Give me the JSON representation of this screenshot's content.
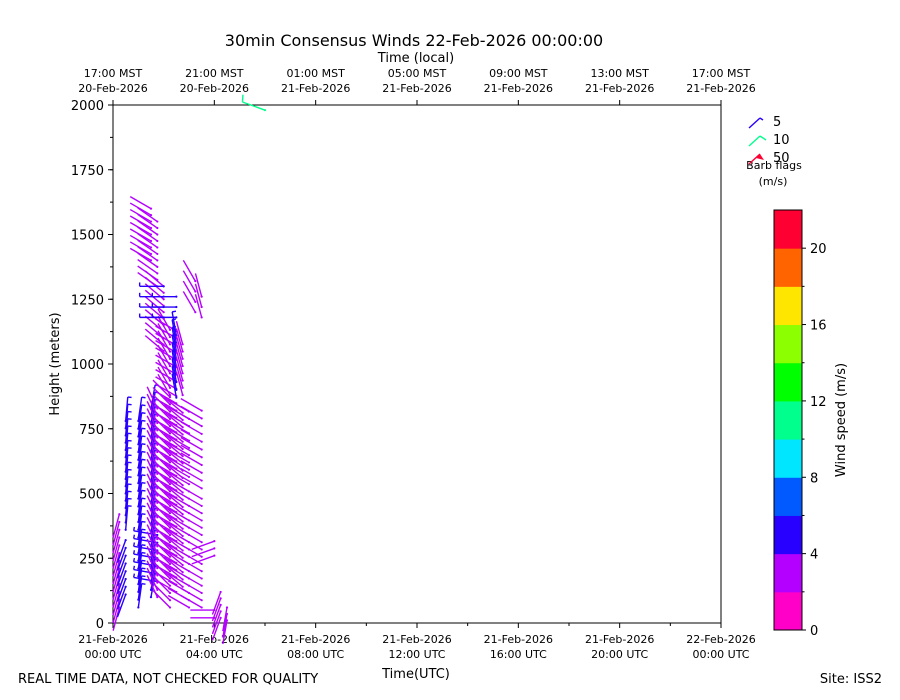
{
  "chart_data": {
    "type": "scatter",
    "title": "30min Consensus Winds 22-Feb-2026 00:00:00",
    "top_axis_title": "Time (local)",
    "xlabel": "Time(UTC)",
    "ylabel": "Height (meters)",
    "xlim_hours": [
      0,
      24
    ],
    "ylim": [
      0,
      2000
    ],
    "y_ticks": [
      0,
      250,
      500,
      750,
      1000,
      1250,
      1500,
      1750,
      2000
    ],
    "x_ticks": [
      {
        "hour": 0,
        "line1": "21-Feb-2026",
        "line2": "00:00 UTC"
      },
      {
        "hour": 4,
        "line1": "21-Feb-2026",
        "line2": "04:00 UTC"
      },
      {
        "hour": 8,
        "line1": "21-Feb-2026",
        "line2": "08:00 UTC"
      },
      {
        "hour": 12,
        "line1": "21-Feb-2026",
        "line2": "12:00 UTC"
      },
      {
        "hour": 16,
        "line1": "21-Feb-2026",
        "line2": "16:00 UTC"
      },
      {
        "hour": 20,
        "line1": "21-Feb-2026",
        "line2": "20:00 UTC"
      },
      {
        "hour": 24,
        "line1": "22-Feb-2026",
        "line2": "00:00 UTC"
      }
    ],
    "top_ticks": [
      {
        "hour": 0,
        "line1": "17:00 MST",
        "line2": "20-Feb-2026"
      },
      {
        "hour": 4,
        "line1": "21:00 MST",
        "line2": "20-Feb-2026"
      },
      {
        "hour": 8,
        "line1": "01:00 MST",
        "line2": "21-Feb-2026"
      },
      {
        "hour": 12,
        "line1": "05:00 MST",
        "line2": "21-Feb-2026"
      },
      {
        "hour": 16,
        "line1": "09:00 MST",
        "line2": "21-Feb-2026"
      },
      {
        "hour": 20,
        "line1": "13:00 MST",
        "line2": "21-Feb-2026"
      },
      {
        "hour": 24,
        "line1": "17:00 MST",
        "line2": "21-Feb-2026"
      }
    ],
    "legend": {
      "entries": [
        {
          "speed": 5,
          "label": "5"
        },
        {
          "speed": 10,
          "label": "10"
        },
        {
          "speed": 50,
          "label": "50"
        }
      ],
      "caption_line1": "Barb flags",
      "caption_line2": "(m/s)"
    },
    "colorbar": {
      "label": "Wind speed (m/s)",
      "min": 0,
      "max": 22,
      "ticks": [
        0,
        4,
        8,
        12,
        16,
        20
      ],
      "colors": [
        "#ff00c8",
        "#b400ff",
        "#2800ff",
        "#005aff",
        "#00e6ff",
        "#00ff8c",
        "#00ff00",
        "#8cff00",
        "#ffe600",
        "#ff6400",
        "#ff0032"
      ]
    },
    "barb_groups": [
      {
        "hour": 0.25,
        "h_start": 60,
        "h_end": 420,
        "step": 30,
        "speed": 3.5,
        "dir": 195
      },
      {
        "hour": 0.5,
        "h_start": 110,
        "h_end": 340,
        "step": 30,
        "speed": 4.0,
        "dir": 200
      },
      {
        "hour": 0.5,
        "h_start": 360,
        "h_end": 790,
        "step": 28,
        "speed": 5.2,
        "dir": 5
      },
      {
        "hour": 1.0,
        "h_start": 60,
        "h_end": 790,
        "step": 30,
        "speed": 5.0,
        "dir": 8
      },
      {
        "hour": 1.5,
        "h_start": 100,
        "h_end": 850,
        "step": 28,
        "speed": 5.5,
        "dir": 10
      },
      {
        "hour": 1.75,
        "h_start": 160,
        "h_end": 360,
        "step": 30,
        "speed": 5.0,
        "dir": 280
      },
      {
        "hour": 1.75,
        "h_start": 100,
        "h_end": 830,
        "step": 28,
        "speed": 3.6,
        "dir": 335
      },
      {
        "hour": 2.25,
        "h_start": 60,
        "h_end": 880,
        "step": 28,
        "speed": 3.4,
        "dir": 315
      },
      {
        "hour": 2.5,
        "h_start": 120,
        "h_end": 1150,
        "step": 28,
        "speed": 3.8,
        "dir": 300
      },
      {
        "hour": 2.75,
        "h_start": 140,
        "h_end": 820,
        "step": 28,
        "speed": 3.2,
        "dir": 310
      },
      {
        "hour": 3.0,
        "h_start": 60,
        "h_end": 830,
        "step": 28,
        "speed": 3.3,
        "dir": 300
      },
      {
        "hour": 1.5,
        "h_start": 1400,
        "h_end": 1600,
        "step": 25,
        "speed": 3.5,
        "dir": 300
      },
      {
        "hour": 1.75,
        "h_start": 1300,
        "h_end": 1560,
        "step": 25,
        "speed": 3.5,
        "dir": 305
      },
      {
        "hour": 2.0,
        "h_start": 1050,
        "h_end": 1300,
        "step": 25,
        "speed": 3.4,
        "dir": 310
      },
      {
        "hour": 2.0,
        "h_start": 1180,
        "h_end": 1300,
        "step": 40,
        "speed": 5.0,
        "dir": 270
      },
      {
        "hour": 2.25,
        "h_start": 880,
        "h_end": 1150,
        "step": 28,
        "speed": 3.6,
        "dir": 330
      },
      {
        "hour": 2.5,
        "h_start": 1180,
        "h_end": 1290,
        "step": 40,
        "speed": 5.0,
        "dir": 270
      },
      {
        "hour": 2.5,
        "h_start": 870,
        "h_end": 1130,
        "step": 30,
        "speed": 5.0,
        "dir": 350
      },
      {
        "hour": 2.75,
        "h_start": 880,
        "h_end": 1100,
        "step": 28,
        "speed": 3.2,
        "dir": 345
      },
      {
        "hour": 3.25,
        "h_start": 1200,
        "h_end": 1350,
        "step": 40,
        "speed": 3.3,
        "dir": 330
      },
      {
        "hour": 3.5,
        "h_start": 60,
        "h_end": 480,
        "step": 28,
        "speed": 3.0,
        "dir": 300
      },
      {
        "hour": 3.5,
        "h_start": 520,
        "h_end": 830,
        "step": 30,
        "speed": 3.0,
        "dir": 300
      },
      {
        "hour": 3.5,
        "h_start": 1180,
        "h_end": 1290,
        "step": 40,
        "speed": 3.0,
        "dir": 345
      },
      {
        "hour": 4.0,
        "h_start": 260,
        "h_end": 340,
        "step": 28,
        "speed": 3.0,
        "dir": 250
      },
      {
        "hour": 4.0,
        "h_start": 20,
        "h_end": 60,
        "step": 30,
        "speed": 2.5,
        "dir": 270
      },
      {
        "hour": 4.25,
        "h_start": 20,
        "h_end": 140,
        "step": 25,
        "speed": 2.2,
        "dir": 200
      },
      {
        "hour": 4.5,
        "h_start": 10,
        "h_end": 60,
        "step": 25,
        "speed": 2.0,
        "dir": 190
      },
      {
        "hour": 6.0,
        "h_start": 1980,
        "h_end": 1980,
        "step": 30,
        "speed": 10.5,
        "dir": 290
      }
    ]
  },
  "footer": {
    "left": "REAL TIME DATA, NOT CHECKED FOR QUALITY",
    "right": "Site: ISS2"
  }
}
